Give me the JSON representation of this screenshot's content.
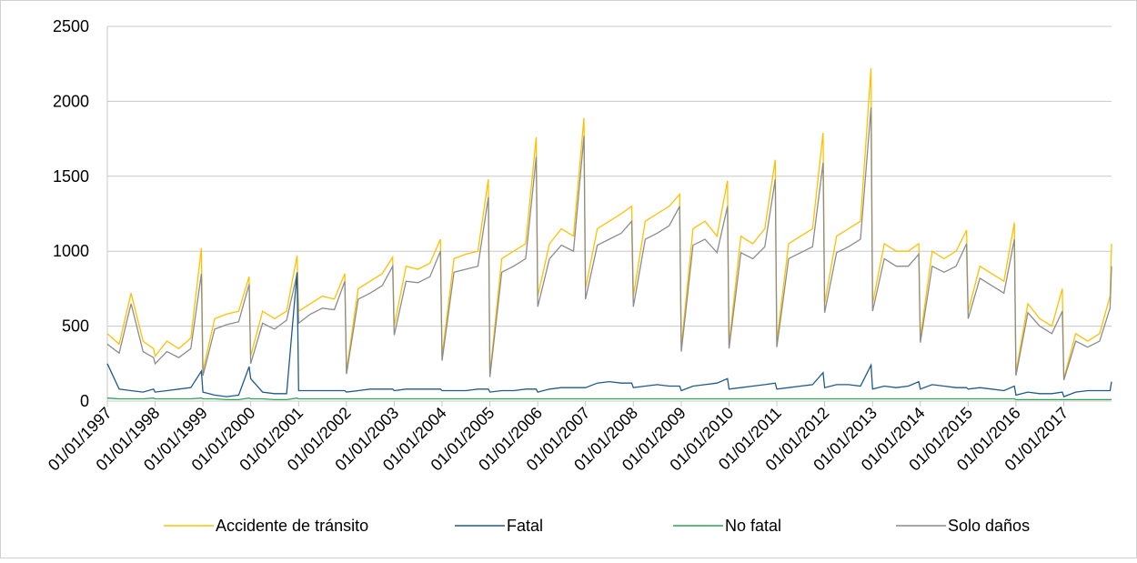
{
  "chart_data": {
    "type": "line",
    "x": [
      "01/01/1997",
      "01/04/1997",
      "01/07/1997",
      "01/10/1997",
      "20/12/1997",
      "01/01/1998",
      "01/04/1998",
      "01/07/1998",
      "01/10/1998",
      "20/12/1998",
      "01/01/1999",
      "01/04/1999",
      "01/07/1999",
      "01/10/1999",
      "20/12/1999",
      "01/01/2000",
      "01/04/2000",
      "01/07/2000",
      "01/10/2000",
      "20/12/2000",
      "01/01/2001",
      "01/04/2001",
      "01/07/2001",
      "01/10/2001",
      "20/12/2001",
      "01/01/2002",
      "01/04/2002",
      "01/07/2002",
      "01/10/2002",
      "20/12/2002",
      "01/01/2003",
      "01/04/2003",
      "01/07/2003",
      "01/10/2003",
      "20/12/2003",
      "01/01/2004",
      "01/04/2004",
      "01/07/2004",
      "01/10/2004",
      "20/12/2004",
      "01/01/2005",
      "01/04/2005",
      "01/07/2005",
      "01/10/2005",
      "20/12/2005",
      "01/01/2006",
      "01/04/2006",
      "01/07/2006",
      "01/10/2006",
      "20/12/2006",
      "01/01/2007",
      "01/04/2007",
      "01/07/2007",
      "01/10/2007",
      "20/12/2007",
      "01/01/2008",
      "01/04/2008",
      "01/07/2008",
      "01/10/2008",
      "20/12/2008",
      "01/01/2009",
      "01/04/2009",
      "01/07/2009",
      "01/10/2009",
      "20/12/2009",
      "01/01/2010",
      "01/04/2010",
      "01/07/2010",
      "01/10/2010",
      "20/12/2010",
      "01/01/2011",
      "01/04/2011",
      "01/07/2011",
      "01/10/2011",
      "20/12/2011",
      "01/01/2012",
      "01/04/2012",
      "01/07/2012",
      "01/10/2012",
      "20/12/2012",
      "01/01/2013",
      "01/04/2013",
      "01/07/2013",
      "01/10/2013",
      "20/12/2013",
      "01/01/2014",
      "01/04/2014",
      "01/07/2014",
      "01/10/2014",
      "20/12/2014",
      "01/01/2015",
      "01/04/2015",
      "01/07/2015",
      "01/10/2015",
      "20/12/2015",
      "01/01/2016",
      "01/04/2016",
      "01/07/2016",
      "01/10/2016",
      "20/12/2016",
      "01/01/2017",
      "01/04/2017",
      "01/07/2017",
      "01/10/2017",
      "20/12/2017",
      "31/12/2017"
    ],
    "series": [
      {
        "name": "Accidente de tránsito",
        "color": "#ffc000",
        "values": [
          450,
          380,
          720,
          400,
          350,
          300,
          400,
          350,
          420,
          1020,
          200,
          550,
          580,
          600,
          830,
          300,
          600,
          550,
          600,
          970,
          600,
          650,
          700,
          680,
          850,
          200,
          750,
          800,
          850,
          960,
          500,
          900,
          880,
          920,
          1080,
          300,
          950,
          980,
          1000,
          1480,
          180,
          950,
          1000,
          1050,
          1760,
          700,
          1050,
          1150,
          1100,
          1890,
          750,
          1150,
          1200,
          1250,
          1300,
          700,
          1200,
          1250,
          1300,
          1380,
          360,
          1150,
          1200,
          1100,
          1470,
          380,
          1100,
          1050,
          1150,
          1610,
          400,
          1050,
          1100,
          1150,
          1790,
          650,
          1100,
          1150,
          1200,
          2220,
          650,
          1050,
          1000,
          1000,
          1050,
          420,
          1000,
          950,
          1000,
          1140,
          600,
          900,
          850,
          800,
          1190,
          190,
          650,
          550,
          500,
          750,
          150,
          450,
          400,
          450,
          700,
          1050
        ]
      },
      {
        "name": "Fatal",
        "color": "#1f5a8c",
        "values": [
          250,
          80,
          70,
          60,
          80,
          60,
          70,
          80,
          90,
          200,
          60,
          40,
          30,
          40,
          230,
          150,
          60,
          50,
          50,
          860,
          70,
          70,
          70,
          70,
          70,
          60,
          70,
          80,
          80,
          80,
          70,
          80,
          80,
          80,
          80,
          70,
          70,
          70,
          80,
          80,
          60,
          70,
          70,
          80,
          80,
          60,
          80,
          90,
          90,
          90,
          90,
          120,
          130,
          120,
          120,
          90,
          100,
          110,
          100,
          100,
          70,
          100,
          110,
          120,
          150,
          80,
          90,
          100,
          110,
          120,
          80,
          90,
          100,
          110,
          190,
          90,
          110,
          110,
          100,
          240,
          80,
          100,
          90,
          100,
          130,
          80,
          110,
          100,
          90,
          90,
          80,
          90,
          80,
          70,
          100,
          40,
          60,
          50,
          50,
          60,
          30,
          60,
          70,
          70,
          70,
          130
        ]
      },
      {
        "name": "No fatal",
        "color": "#2ea353",
        "values": [
          20,
          15,
          15,
          15,
          20,
          15,
          15,
          15,
          15,
          20,
          15,
          15,
          10,
          10,
          20,
          15,
          15,
          10,
          10,
          20,
          15,
          15,
          15,
          15,
          15,
          15,
          15,
          15,
          15,
          15,
          15,
          15,
          15,
          15,
          15,
          15,
          15,
          15,
          15,
          15,
          15,
          15,
          15,
          15,
          15,
          15,
          15,
          15,
          15,
          15,
          15,
          15,
          15,
          15,
          15,
          15,
          15,
          15,
          15,
          15,
          15,
          15,
          15,
          15,
          15,
          15,
          15,
          15,
          15,
          15,
          15,
          15,
          15,
          15,
          15,
          15,
          15,
          15,
          15,
          15,
          15,
          15,
          15,
          15,
          15,
          15,
          15,
          15,
          15,
          15,
          15,
          15,
          15,
          15,
          15,
          10,
          10,
          10,
          10,
          10,
          10,
          10,
          10,
          10,
          10,
          10
        ]
      },
      {
        "name": "Solo daños",
        "color": "#8c8c8c",
        "values": [
          380,
          320,
          650,
          330,
          290,
          250,
          330,
          290,
          350,
          850,
          170,
          480,
          510,
          530,
          780,
          250,
          520,
          480,
          540,
          850,
          520,
          580,
          620,
          610,
          800,
          180,
          680,
          720,
          770,
          900,
          440,
          800,
          790,
          830,
          1000,
          270,
          860,
          880,
          900,
          1360,
          160,
          860,
          900,
          950,
          1630,
          630,
          950,
          1040,
          1000,
          1770,
          680,
          1040,
          1080,
          1120,
          1200,
          630,
          1080,
          1120,
          1170,
          1300,
          330,
          1040,
          1080,
          990,
          1300,
          350,
          990,
          950,
          1030,
          1480,
          360,
          950,
          990,
          1030,
          1590,
          590,
          990,
          1030,
          1080,
          1960,
          600,
          950,
          900,
          900,
          980,
          390,
          900,
          860,
          900,
          1050,
          550,
          820,
          770,
          720,
          1080,
          170,
          590,
          500,
          450,
          600,
          140,
          400,
          360,
          400,
          620,
          900
        ]
      }
    ],
    "xlim": [
      "01/01/1997",
      "31/12/2017"
    ],
    "xticks": [
      "01/01/1997",
      "01/01/1998",
      "01/01/1999",
      "01/01/2000",
      "01/01/2001",
      "01/01/2002",
      "01/01/2003",
      "01/01/2004",
      "01/01/2005",
      "01/01/2006",
      "01/01/2007",
      "01/01/2008",
      "01/01/2009",
      "01/01/2010",
      "01/01/2011",
      "01/01/2012",
      "01/01/2013",
      "01/01/2014",
      "01/01/2015",
      "01/01/2016",
      "01/01/2017"
    ],
    "ylim": [
      0,
      2500
    ],
    "yticks": [
      0,
      500,
      1000,
      1500,
      2000,
      2500
    ],
    "grid": true,
    "legend": "bottom"
  }
}
